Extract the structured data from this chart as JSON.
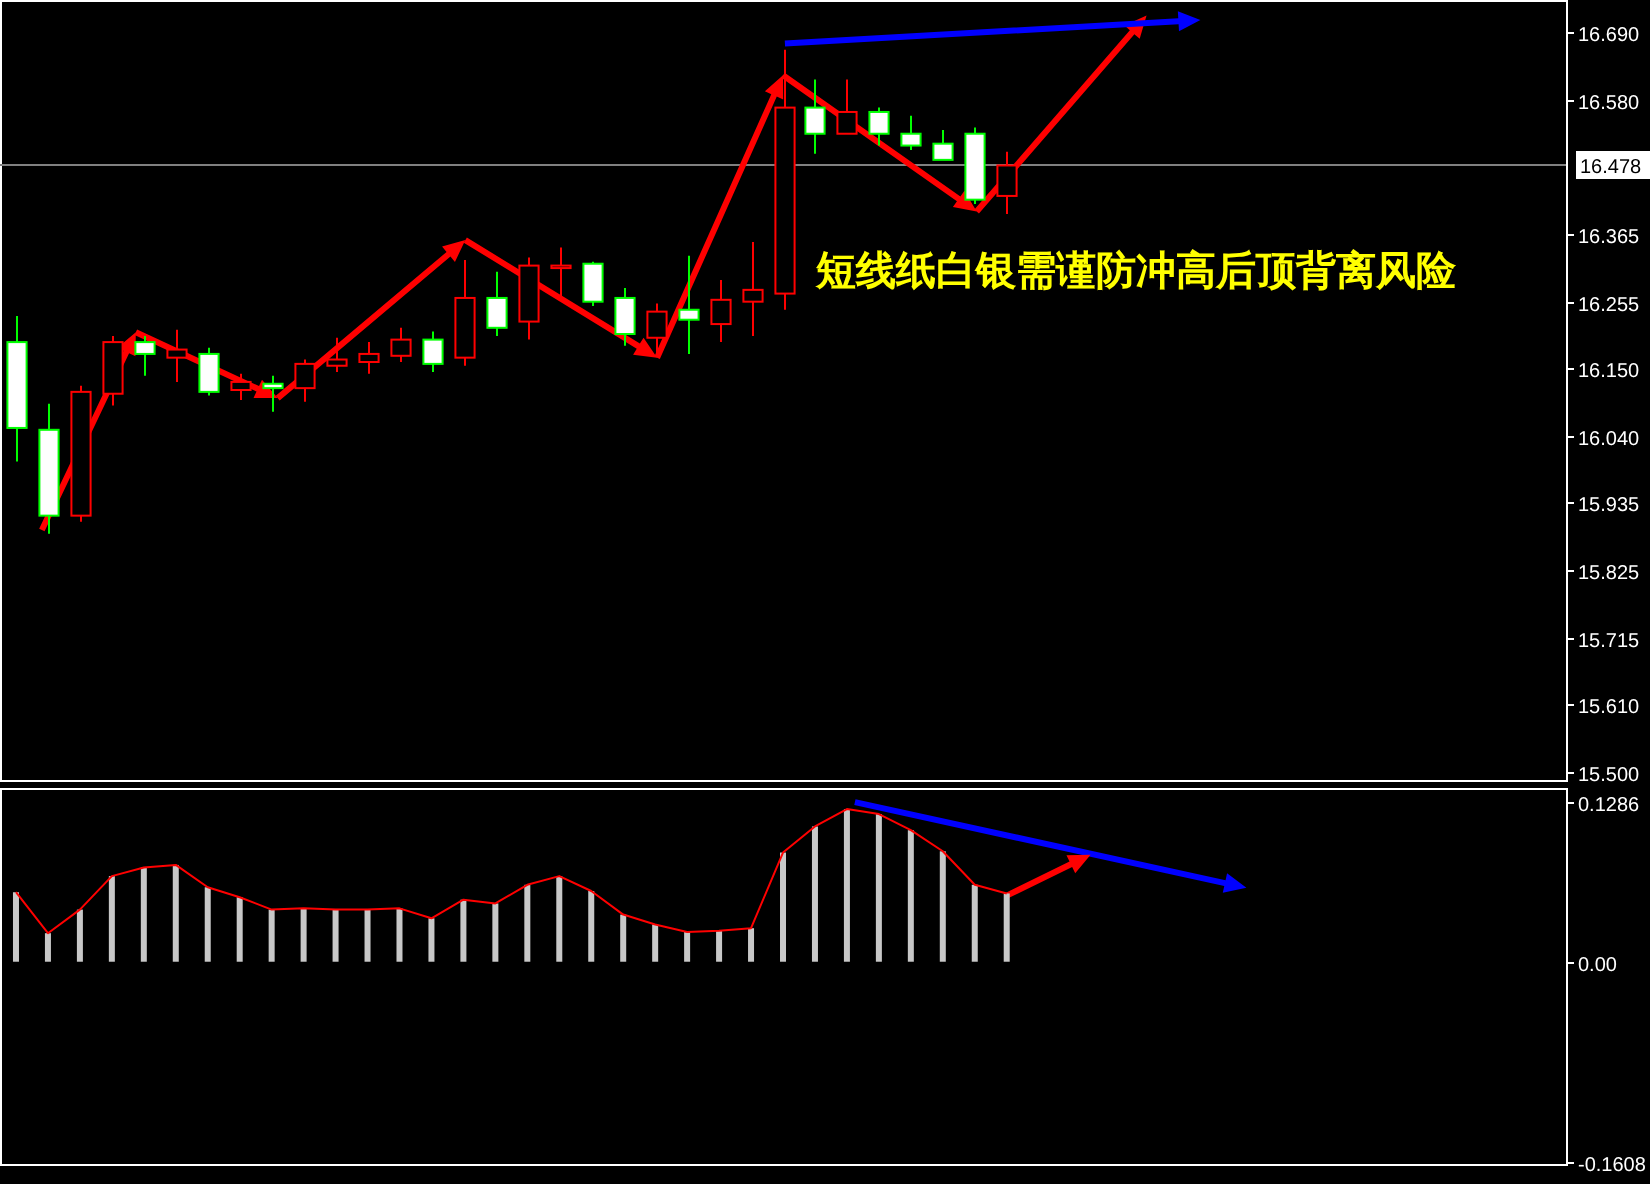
{
  "chart_data": [
    {
      "type": "candlestick",
      "categories": [
        null,
        null,
        null,
        null,
        null,
        null,
        null,
        null,
        null,
        null,
        null,
        null,
        null,
        null,
        null,
        null,
        null,
        null,
        null,
        null,
        null,
        null,
        null,
        null,
        null,
        null,
        null,
        null,
        null,
        null,
        null,
        null,
        null,
        null,
        null,
        null,
        null,
        null,
        null,
        null,
        null,
        null,
        null,
        null,
        null,
        null,
        null,
        null,
        null
      ],
      "ohlc": [
        [
          16.191,
          16.233,
          15.999,
          16.053
        ],
        [
          16.05,
          16.092,
          15.883,
          15.912
        ],
        [
          15.912,
          16.121,
          15.902,
          16.111
        ],
        [
          16.108,
          16.201,
          16.089,
          16.191
        ],
        [
          16.191,
          16.201,
          16.137,
          16.172
        ],
        [
          16.166,
          16.211,
          16.127,
          16.179
        ],
        [
          16.172,
          16.182,
          16.105,
          16.111
        ],
        [
          16.114,
          16.14,
          16.098,
          16.127
        ],
        [
          16.124,
          16.137,
          16.079,
          16.117
        ],
        [
          16.117,
          16.163,
          16.095,
          16.156
        ],
        [
          16.153,
          16.198,
          16.143,
          16.163
        ],
        [
          16.159,
          16.191,
          16.14,
          16.172
        ],
        [
          16.169,
          16.214,
          16.159,
          16.195
        ],
        [
          16.195,
          16.208,
          16.143,
          16.156
        ],
        [
          16.166,
          16.323,
          16.153,
          16.262
        ],
        [
          16.262,
          16.304,
          16.201,
          16.214
        ],
        [
          16.224,
          16.327,
          16.195,
          16.314
        ],
        [
          16.31,
          16.343,
          16.265,
          16.314
        ],
        [
          16.317,
          16.32,
          16.249,
          16.256
        ],
        [
          16.262,
          16.278,
          16.185,
          16.204
        ],
        [
          16.198,
          16.253,
          16.172,
          16.24
        ],
        [
          16.243,
          16.33,
          16.172,
          16.227
        ],
        [
          16.22,
          16.291,
          16.191,
          16.259
        ],
        [
          16.256,
          16.352,
          16.201,
          16.275
        ],
        [
          16.269,
          16.661,
          16.243,
          16.568
        ],
        [
          16.568,
          16.613,
          16.494,
          16.526
        ],
        [
          16.526,
          16.613,
          16.526,
          16.561
        ],
        [
          16.561,
          16.568,
          16.507,
          16.526
        ],
        [
          16.526,
          16.555,
          16.5,
          16.507
        ],
        [
          16.51,
          16.532,
          16.484,
          16.484
        ],
        [
          16.526,
          16.536,
          16.413,
          16.42
        ],
        [
          16.426,
          16.497,
          16.397,
          16.475
        ],
        null,
        null,
        null,
        null,
        null,
        null,
        null,
        null,
        null,
        null,
        null,
        null,
        null,
        null,
        null,
        null,
        null
      ],
      "ylim": [
        15.487,
        16.741
      ],
      "yticks": [
        {
          "value": 16.69,
          "label": "16.690"
        },
        {
          "value": 16.58,
          "label": "16.580"
        },
        16.365,
        16.255,
        {
          "value": 16.15,
          "label": "16.150"
        },
        {
          "value": 16.04,
          "label": "16.040"
        },
        15.935,
        15.825,
        15.715,
        {
          "value": 15.61,
          "label": "15.610"
        },
        {
          "value": 15.5,
          "label": "15.500"
        }
      ],
      "ref_lines": [
        {
          "axis": "y",
          "value": 16.478,
          "label": "16.478",
          "color": "#808080"
        }
      ],
      "annotations": [
        "短线纸白银需谨防冲高后顶背离风险"
      ],
      "tick_labels": "y"
    },
    {
      "type": "bar",
      "categories": [
        null,
        null,
        null,
        null,
        null,
        null,
        null,
        null,
        null,
        null,
        null,
        null,
        null,
        null,
        null,
        null,
        null,
        null,
        null,
        null,
        null,
        null,
        null,
        null,
        null,
        null,
        null,
        null,
        null,
        null,
        null,
        null,
        null,
        null,
        null,
        null,
        null,
        null,
        null,
        null,
        null,
        null,
        null,
        null,
        null,
        null,
        null,
        null,
        null
      ],
      "series": [
        {
          "type": "bar",
          "color": "#c8c8c8",
          "values": [
            0.056,
            0.023,
            0.042,
            0.069,
            0.076,
            0.078,
            0.06,
            0.052,
            0.042,
            0.043,
            0.042,
            0.042,
            0.043,
            0.035,
            0.05,
            0.047,
            0.062,
            0.069,
            0.057,
            0.038,
            0.03,
            0.024,
            0.025,
            0.027,
            0.088,
            0.109,
            0.123,
            0.119,
            0.106,
            0.089,
            0.062,
            0.055,
            null,
            null,
            null,
            null,
            null,
            null,
            null,
            null,
            null,
            null,
            null,
            null,
            null,
            null,
            null,
            null,
            null
          ]
        },
        {
          "type": "line",
          "color": "#ff0000",
          "values": [
            0.056,
            0.023,
            0.042,
            0.069,
            0.076,
            0.078,
            0.06,
            0.052,
            0.042,
            0.043,
            0.042,
            0.042,
            0.043,
            0.035,
            0.05,
            0.047,
            0.062,
            0.069,
            0.057,
            0.038,
            0.03,
            0.024,
            0.025,
            0.027,
            0.088,
            0.109,
            0.123,
            0.119,
            0.106,
            0.089,
            0.062,
            0.055,
            null,
            null,
            null,
            null,
            null,
            null,
            null,
            null,
            null,
            null,
            null,
            null,
            null,
            null,
            null,
            null,
            null
          ]
        }
      ],
      "ylim": [
        -0.163,
        0.14
      ],
      "yticks": [
        {
          "value": 0.1286,
          "label": "0.1286"
        },
        {
          "value": 0,
          "label": "0.00"
        },
        {
          "value": -0.1608,
          "label": "-0.1608"
        }
      ],
      "tick_labels": "y"
    }
  ]
}
